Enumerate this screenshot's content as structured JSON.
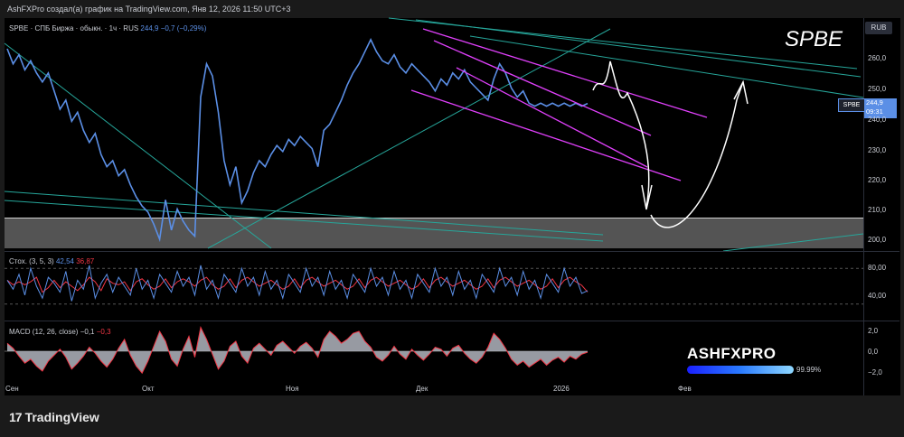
{
  "header": {
    "title": "AshFXPro создал(а) график на TradingView.com, Янв 12, 2026 11:50 UTC+3"
  },
  "chart": {
    "symbol_big": "SPBE",
    "currency": "RUB",
    "legend_main": {
      "name": "SPBE · СПБ Биржа · обыкн. · 1ч · RUS",
      "last": "244,9",
      "change": "−0,7 (−0,29%)"
    },
    "legend_stoch": {
      "name": "Стох. (3, 5, 3)",
      "k": "42,54",
      "d": "36,87"
    },
    "legend_macd": {
      "name": "MACD (12, 26, close)",
      "macd": "−0,1",
      "signal": "−0,3"
    },
    "price_tag": {
      "symbol": "SPBE",
      "price": "244,9",
      "countdown": "09:31"
    },
    "price_axis": [
      "260,0",
      "250,0",
      "240,0",
      "230,0",
      "220,0",
      "210,0",
      "200,0"
    ],
    "stoch_axis": [
      "80,00",
      "40,00"
    ],
    "macd_axis": [
      "2,0",
      "0,0",
      "−2,0"
    ],
    "time_axis": [
      "Сен",
      "Окт",
      "Ноя",
      "Дек",
      "2026",
      "Фев"
    ],
    "watermark": {
      "text": "ASHFXPRO",
      "percent": "99.99%"
    },
    "colors": {
      "price_line": "#5b8fe6",
      "trendline_green": "#26a69a",
      "channel_magenta": "#e040fb",
      "projection": "#ffffff",
      "stoch_k": "#5b8fe6",
      "stoch_d": "#f23645",
      "macd_hist": "#b2b5be",
      "macd_line": "#f23645",
      "support_band": "#5d5d5d"
    }
  },
  "footer": {
    "logo_text": "TradingView",
    "logo_mark": "17"
  },
  "chart_data": {
    "type": "line",
    "title": "SPBE · СПБ Биржа · обыкн. · 1ч · RUS",
    "ylabel": "RUB",
    "ylim": [
      195,
      268
    ],
    "x_labels": [
      "Сен",
      "Окт",
      "Ноя",
      "Дек",
      "2026",
      "Фев"
    ],
    "x": [
      0,
      1,
      2,
      3,
      4,
      5,
      6,
      7,
      8,
      9,
      10,
      11,
      12,
      13,
      14,
      15,
      16,
      17,
      18,
      19,
      20,
      21,
      22,
      23,
      24,
      25,
      26,
      27,
      28,
      29,
      30,
      31,
      32,
      33,
      34,
      35,
      36,
      37,
      38,
      39,
      40,
      41,
      42,
      43,
      44,
      45,
      46,
      47,
      48,
      49,
      50,
      51,
      52,
      53,
      54,
      55,
      56,
      57,
      58,
      59,
      60,
      61,
      62,
      63,
      64,
      65,
      66,
      67,
      68,
      69,
      70,
      71,
      72,
      73,
      74,
      75,
      76,
      77,
      78,
      79,
      80,
      81,
      82,
      83,
      84,
      85,
      86,
      87,
      88,
      89,
      90,
      91,
      92,
      93,
      94,
      95,
      96,
      97,
      98,
      99
    ],
    "series": [
      {
        "name": "SPBE",
        "values": [
          263,
          258,
          261,
          256,
          259,
          255,
          252,
          255,
          249,
          243,
          246,
          239,
          242,
          236,
          232,
          235,
          228,
          224,
          226,
          221,
          223,
          218,
          214,
          211,
          209,
          205,
          200,
          213,
          203,
          210,
          206,
          203,
          201,
          247,
          258,
          254,
          242,
          226,
          218,
          224,
          212,
          216,
          222,
          226,
          224,
          228,
          231,
          229,
          233,
          231,
          234,
          232,
          230,
          224,
          236,
          238,
          242,
          246,
          251,
          255,
          258,
          262,
          266,
          262,
          259,
          258,
          261,
          257,
          255,
          258,
          256,
          254,
          252,
          249,
          253,
          251,
          255,
          253,
          256,
          252,
          250,
          248,
          246,
          253,
          258,
          255,
          250,
          247,
          249,
          245,
          244,
          245,
          244,
          245,
          244,
          245,
          244,
          245,
          244,
          244.9
        ]
      },
      {
        "name": "Стох. K (3, 5, 3)",
        "values": [
          60,
          45,
          70,
          35,
          80,
          50,
          30,
          65,
          55,
          40,
          75,
          25,
          60,
          45,
          85,
          30,
          55,
          70,
          40,
          65,
          50,
          35,
          80,
          45,
          60,
          30,
          70,
          55,
          40,
          75,
          50,
          65,
          35,
          85,
          45,
          60,
          30,
          70,
          55,
          40,
          80,
          50,
          65,
          35,
          75,
          45,
          60,
          30,
          70,
          55,
          40,
          80,
          50,
          65,
          35,
          75,
          45,
          60,
          30,
          70,
          55,
          40,
          80,
          50,
          65,
          35,
          75,
          45,
          60,
          30,
          70,
          55,
          40,
          80,
          50,
          65,
          35,
          75,
          45,
          60,
          30,
          70,
          55,
          40,
          80,
          50,
          65,
          35,
          75,
          45,
          60,
          30,
          70,
          55,
          40,
          80,
          50,
          65,
          38,
          42.54
        ]
      },
      {
        "name": "MACD (12, 26, close)",
        "values": [
          0.8,
          0.3,
          -0.5,
          -1.2,
          -0.8,
          -1.5,
          -2.0,
          -1.0,
          -0.4,
          0.2,
          -0.6,
          -1.8,
          -1.2,
          -0.5,
          0.4,
          -0.2,
          -1.0,
          -1.6,
          -0.8,
          0.3,
          1.2,
          -0.4,
          -1.5,
          -2.2,
          -1.0,
          0.5,
          2.0,
          1.0,
          -0.8,
          -1.5,
          0.2,
          1.5,
          -0.6,
          2.4,
          1.2,
          -0.3,
          -1.8,
          -1.0,
          0.5,
          1.0,
          -0.5,
          -1.2,
          0.3,
          0.8,
          0.2,
          -0.4,
          0.6,
          1.0,
          0.4,
          -0.2,
          0.5,
          0.9,
          0.3,
          -0.6,
          1.2,
          2.0,
          1.5,
          0.8,
          1.2,
          1.8,
          2.0,
          1.0,
          0.4,
          -0.6,
          -1.0,
          -0.4,
          0.5,
          -0.3,
          -0.8,
          0.2,
          -0.4,
          -0.9,
          -0.3,
          0.4,
          0.2,
          -0.5,
          0.3,
          0.6,
          -0.2,
          -0.8,
          -1.2,
          -0.6,
          0.4,
          1.8,
          1.2,
          0.3,
          -0.8,
          -1.4,
          -1.0,
          -1.6,
          -1.2,
          -0.8,
          -1.4,
          -0.9,
          -0.6,
          -1.1,
          -0.5,
          -0.8,
          -0.3,
          -0.1
        ]
      }
    ],
    "annotations": {
      "projection_low": 208,
      "projection_high": 252
    }
  }
}
